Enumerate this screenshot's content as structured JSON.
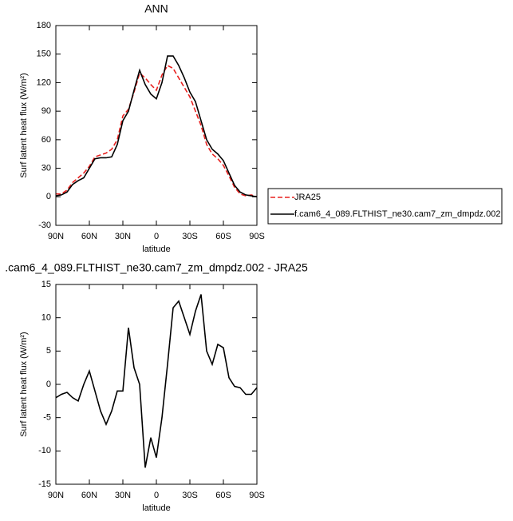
{
  "chart_data": [
    {
      "type": "line",
      "title": "ANN",
      "x_label": "latitude",
      "y_label": "Surf latent heat flux (W/m²)",
      "x": [
        90,
        85,
        80,
        75,
        70,
        65,
        60,
        55,
        50,
        45,
        40,
        35,
        30,
        25,
        20,
        15,
        10,
        5,
        0,
        -5,
        -10,
        -15,
        -20,
        -25,
        -30,
        -35,
        -40,
        -45,
        -50,
        -55,
        -60,
        -65,
        -70,
        -75,
        -80,
        -85,
        -90
      ],
      "xlim": [
        90,
        -90
      ],
      "xticks": [
        {
          "value": 90,
          "label": "90N"
        },
        {
          "value": 60,
          "label": "60N"
        },
        {
          "value": 30,
          "label": "30N"
        },
        0,
        {
          "value": -30,
          "label": "30S"
        },
        {
          "value": -60,
          "label": "60S"
        },
        {
          "value": -90,
          "label": "90S"
        }
      ],
      "ylim": [
        -30,
        180
      ],
      "yticks": [
        -30,
        0,
        30,
        60,
        90,
        120,
        150,
        180
      ],
      "legend": "outside-right",
      "series": [
        {
          "name": "JRA25",
          "color": "#e8211f",
          "dashed": true,
          "values": [
            3,
            3,
            7,
            15,
            20,
            25,
            32,
            42,
            44,
            46,
            50,
            60,
            85,
            92,
            110,
            130,
            125,
            118,
            112,
            128,
            138,
            135,
            125,
            115,
            105,
            90,
            75,
            55,
            45,
            40,
            33,
            22,
            10,
            3,
            1,
            2,
            0
          ]
        },
        {
          "name": "f.cam6_4_089.FLTHIST_ne30.cam7_zm_dmpdz.002",
          "color": "#000000",
          "dashed": false,
          "values": [
            1,
            2,
            5,
            13,
            17,
            20,
            30,
            40,
            41,
            41,
            42,
            55,
            80,
            90,
            112,
            133,
            118,
            108,
            103,
            120,
            148,
            148,
            138,
            125,
            110,
            100,
            80,
            60,
            50,
            45,
            38,
            25,
            12,
            5,
            2,
            1,
            0
          ]
        }
      ]
    },
    {
      "type": "line",
      "title": ".cam6_4_089.FLTHIST_ne30.cam7_zm_dmpdz.002 - JRA25",
      "x_label": "latitude",
      "y_label": "Surf latent heat flux (W/m²)",
      "x": [
        90,
        85,
        80,
        75,
        70,
        65,
        60,
        55,
        50,
        45,
        40,
        35,
        30,
        25,
        20,
        15,
        10,
        5,
        0,
        -5,
        -10,
        -15,
        -20,
        -25,
        -30,
        -35,
        -40,
        -45,
        -50,
        -55,
        -60,
        -65,
        -70,
        -75,
        -80,
        -85,
        -90
      ],
      "xlim": [
        90,
        -90
      ],
      "xticks": [
        {
          "value": 90,
          "label": "90N"
        },
        {
          "value": 60,
          "label": "60N"
        },
        {
          "value": 30,
          "label": "30N"
        },
        0,
        {
          "value": -30,
          "label": "30S"
        },
        {
          "value": -60,
          "label": "60S"
        },
        {
          "value": -90,
          "label": "90S"
        }
      ],
      "ylim": [
        -15,
        15
      ],
      "yticks": [
        -15,
        -10,
        -5,
        0,
        5,
        10,
        15
      ],
      "series": [
        {
          "color": "#000000",
          "dashed": false,
          "values": [
            -2,
            -1.5,
            -1.2,
            -2,
            -2.5,
            0,
            2,
            -1,
            -4,
            -6,
            -4,
            -1,
            -1,
            8.5,
            2.5,
            0,
            -12.5,
            -8,
            -11,
            -5,
            3,
            11.5,
            12.5,
            10,
            7.5,
            11,
            13.5,
            5,
            3,
            6,
            5.5,
            1,
            -0.3,
            -0.5,
            -1.5,
            -1.5,
            -0.5
          ]
        }
      ]
    }
  ]
}
